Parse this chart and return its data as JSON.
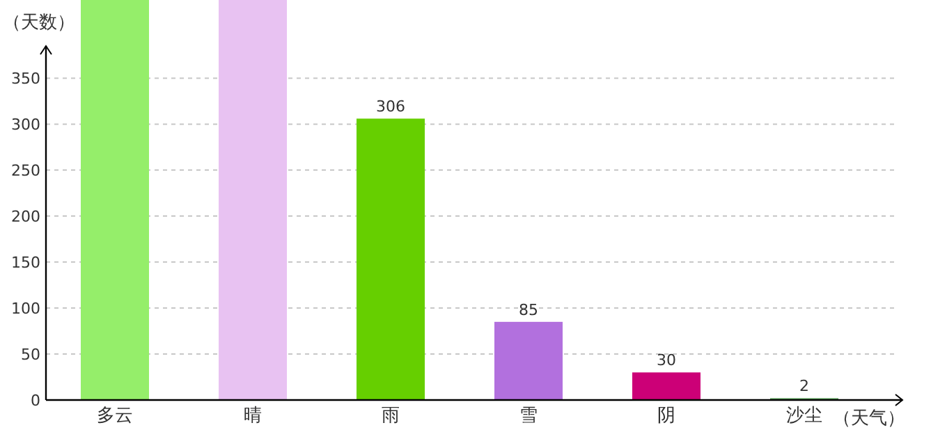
{
  "chart_data": {
    "type": "bar",
    "xlabel": "（天气）",
    "ylabel": "（天数）",
    "categories": [
      "多云",
      "晴",
      "雨",
      "雪",
      "阴",
      "沙尘"
    ],
    "values": [
      435,
      435,
      306,
      85,
      30,
      2
    ],
    "value_labels": [
      null,
      null,
      "306",
      "85",
      "30",
      "2"
    ],
    "colors": [
      "#95ee6a",
      "#e8c2f2",
      "#66cf00",
      "#b270de",
      "#cc0077",
      "#5fa35f"
    ],
    "ylim": [
      0,
      435
    ],
    "yticks": [
      0,
      50,
      100,
      150,
      200,
      250,
      300,
      350
    ],
    "grid": "y"
  }
}
